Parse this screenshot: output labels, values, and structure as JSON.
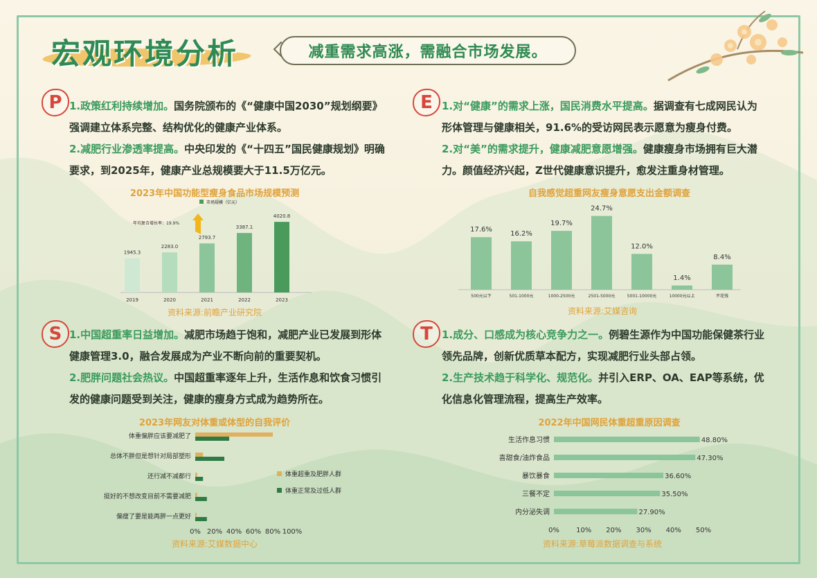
{
  "header": {
    "title": "宏观环境分析",
    "subtitle": "减重需求高涨，需融合市场发展。"
  },
  "sections": {
    "P": {
      "letter": "P",
      "p1_hl": "1.政策红利持续增加。",
      "p1_text": "国务院颁布的《“健康中国2030”规划纲要》强调建立体系完整、结构优化的健康产业体系。",
      "p2_hl": "2.减肥行业渗透率提高。",
      "p2_text": "中央印发的《“十四五”国民健康规划》明确要求，到2025年，健康产业总规模要大于11.5万亿元。"
    },
    "E": {
      "letter": "E",
      "p1_hl": "1.对“健康”的需求上涨，国民消费水平提高。",
      "p1_text": "据调查有七成网民认为形体管理与健康相关，91.6%的受访网民表示愿意为瘦身付费。",
      "p2_hl": "2.对“美”的需求提升，健康减肥意愿增强。",
      "p2_text": "健康瘦身市场拥有巨大潜力。颜值经济兴起，Z世代健康意识提升，愈发注重身材管理。"
    },
    "S": {
      "letter": "S",
      "p1_hl": "1.中国超重率日益增加。",
      "p1_text": "减肥市场趋于饱和，减肥产业已发展到形体健康管理3.0，融合发展成为产业不断向前的重要契机。",
      "p2_hl": "2.肥胖问题社会热议。",
      "p2_text": "中国超重率逐年上升，生活作息和饮食习惯引发的健康问题受到关注，健康的瘦身方式成为趋势所在。"
    },
    "T": {
      "letter": "T",
      "p1_hl": "1.成分、口感成为核心竞争力之一。",
      "p1_text": "例碧生源作为中国功能保健茶行业领先品牌，创新优质草本配方，实现减肥行业头部占领。",
      "p2_hl": "2.生产技术趋于科学化、规范化。",
      "p2_text": "并引入ERP、OA、EAP等系统，优化信息化管理流程，提高生产效率。"
    }
  },
  "chart_data": [
    {
      "id": "c1",
      "type": "bar",
      "title": "2023年中国功能型瘦身食品市场规模预测",
      "legend": "市场规模（亿元）",
      "annotation": "年均复合增长率：19.9%",
      "categories": [
        "2019",
        "2020",
        "2021",
        "2022",
        "2023"
      ],
      "values": [
        1945.3,
        2283.0,
        2793.7,
        3387.1,
        4020.8
      ],
      "value_labels": [
        "1945.3",
        "2283.0",
        "2793.7",
        "3387.1",
        "4020.8"
      ],
      "ylim": [
        0,
        4500
      ],
      "colors": [
        "#cfe8d4",
        "#b4dcbd",
        "#8cc59a",
        "#6fb37f",
        "#4a9a5c"
      ],
      "source": "资料来源:前瞻产业研究院"
    },
    {
      "id": "c2",
      "type": "bar",
      "title": "自我感觉超重网友瘦身意愿支出金额调查",
      "categories": [
        "500元以下",
        "501-1000元",
        "1000-2500元",
        "2501-5000元",
        "5001-10000元",
        "10000元以上",
        "不花钱"
      ],
      "values": [
        17.6,
        16.2,
        19.7,
        24.7,
        12.0,
        1.4,
        8.4
      ],
      "value_labels": [
        "17.6%",
        "16.2%",
        "19.7%",
        "24.7%",
        "12.0%",
        "1.4%",
        "8.4%"
      ],
      "ylim": [
        0,
        26
      ],
      "color": "#8cc59a",
      "source": "资料来源:艾媒咨询"
    },
    {
      "id": "c3",
      "type": "bar",
      "orientation": "horizontal",
      "title": "2023年网友对体重或体型的自我评价",
      "categories": [
        "体重偏胖应该要减肥了",
        "总体不胖但是想针对局部塑形",
        "还行减不减都行",
        "挺好的不想改变目前不需要减肥",
        "偏瘦了要是能再胖一点更好"
      ],
      "series": [
        {
          "name": "体重超重及肥胖人群",
          "values": [
            80,
            8,
            2,
            2,
            1
          ],
          "color": "#e0b060"
        },
        {
          "name": "体重正常及过低人群",
          "values": [
            35,
            30,
            8,
            12,
            12
          ],
          "color": "#2f7a45"
        }
      ],
      "ticks": [
        "0%",
        "20%",
        "40%",
        "60%",
        "80%",
        "100%"
      ],
      "xlim": [
        0,
        100
      ],
      "source": "资料来源:艾媒数据中心"
    },
    {
      "id": "c4",
      "type": "bar",
      "orientation": "horizontal",
      "title": "2022年中国网民体重超重原因调查",
      "categories": [
        "生活作息习惯",
        "喜甜食/油炸食品",
        "暴饮暴食",
        "三餐不定",
        "内分泌失调"
      ],
      "values": [
        48.8,
        47.3,
        36.6,
        35.5,
        27.9
      ],
      "value_labels": [
        "48.80%",
        "47.30%",
        "36.60%",
        "35.50%",
        "27.90%"
      ],
      "ticks": [
        "0%",
        "10%",
        "20%",
        "30%",
        "40%",
        "50%"
      ],
      "xlim": [
        0,
        50
      ],
      "color": "#8cc59a",
      "source": "资料来源:草莓派数据调查与系统"
    }
  ]
}
